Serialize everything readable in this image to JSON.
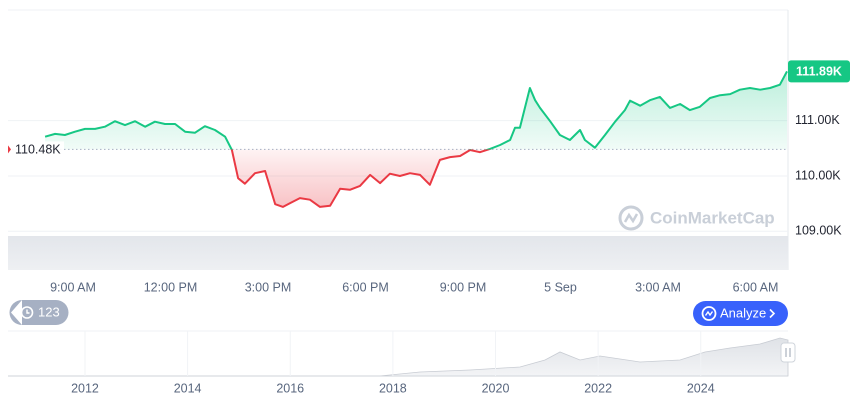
{
  "chart_data": {
    "type": "line",
    "x": [
      8.14,
      8.45,
      8.75,
      9.06,
      9.37,
      9.68,
      9.98,
      10.29,
      10.6,
      10.91,
      11.22,
      11.52,
      11.83,
      12.14,
      12.45,
      12.75,
      13.06,
      13.37,
      13.68,
      13.89,
      14.08,
      14.29,
      14.6,
      14.91,
      15.22,
      15.46,
      15.68,
      15.98,
      16.29,
      16.6,
      16.91,
      17.22,
      17.52,
      17.83,
      18.14,
      18.45,
      18.75,
      19.06,
      19.37,
      19.68,
      19.98,
      20.29,
      20.6,
      20.91,
      21.22,
      21.52,
      21.83,
      22.14,
      22.45,
      22.6,
      22.75,
      23.06,
      23.22,
      23.37,
      23.68,
      23.98,
      24.29,
      24.6,
      24.75,
      25.06,
      25.37,
      25.68,
      25.98,
      26.14,
      26.45,
      26.75,
      27.06,
      27.37,
      27.68,
      27.98,
      28.29,
      28.6,
      28.91,
      29.22,
      29.52,
      29.83,
      30.14,
      30.45,
      30.75,
      30.97
    ],
    "series": [
      {
        "up_color": "#16c784",
        "down_color": "#ea3943",
        "values": [
          110710,
          110760,
          110740,
          110800,
          110850,
          110850,
          110890,
          110990,
          110920,
          110990,
          110890,
          110980,
          110940,
          110940,
          110800,
          110780,
          110900,
          110830,
          110710,
          110470,
          109960,
          109860,
          110050,
          110090,
          109490,
          109440,
          109510,
          109600,
          109570,
          109440,
          109460,
          109770,
          109750,
          109820,
          110020,
          109870,
          110040,
          110000,
          110050,
          110020,
          109840,
          110290,
          110340,
          110360,
          110470,
          110430,
          110490,
          110560,
          110650,
          110870,
          110870,
          111590,
          111370,
          111230,
          110990,
          110740,
          110650,
          110830,
          110650,
          110510,
          110740,
          110980,
          111190,
          111360,
          111270,
          111370,
          111430,
          111230,
          111300,
          111190,
          111250,
          111410,
          111460,
          111480,
          111560,
          111590,
          111560,
          111590,
          111650,
          111890
        ]
      }
    ],
    "baseline": {
      "value": 110480,
      "label": "110.48K"
    },
    "current_price": {
      "value": 111890,
      "label": "111.89K"
    },
    "xlim": [
      7,
      31
    ],
    "xticks": [
      {
        "value": 9,
        "label": "9:00 AM"
      },
      {
        "value": 12,
        "label": "12:00 PM"
      },
      {
        "value": 15,
        "label": "3:00 PM"
      },
      {
        "value": 18,
        "label": "6:00 PM"
      },
      {
        "value": 21,
        "label": "9:00 PM"
      },
      {
        "value": 24,
        "label": "5 Sep"
      },
      {
        "value": 27,
        "label": "3:00 AM"
      },
      {
        "value": 30,
        "label": "6:00 AM"
      }
    ],
    "ylim": [
      108300,
      113000
    ],
    "yticks": [
      {
        "value": 109000,
        "label": "109.00K"
      },
      {
        "value": 110000,
        "label": "110.00K"
      },
      {
        "value": 111000,
        "label": "111.00K"
      }
    ],
    "grid": true,
    "watermark": "CoinMarketCap",
    "badge": 123,
    "button": "Analyze",
    "navigator": {
      "xlim": [
        2010.5,
        2025.7
      ],
      "xticks": [
        2012,
        2014,
        2016,
        2018,
        2020,
        2022,
        2024
      ]
    }
  }
}
